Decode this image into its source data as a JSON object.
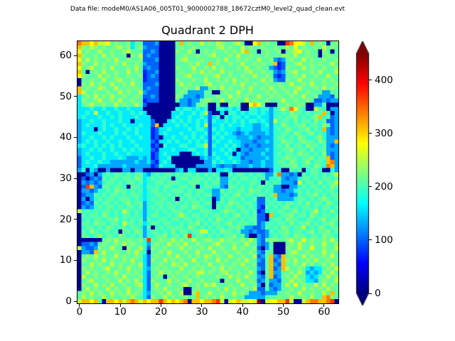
{
  "figure": {
    "data_file_label": "Data file: modeM0/AS1A06_005T01_9000002788_18672cztM0_level2_quad_clean.evt",
    "background_color": "#ffffff"
  },
  "chart_data": {
    "type": "heatmap",
    "title": "Quadrant 2 DPH",
    "xlabel": "",
    "ylabel": "",
    "x_ticks": [
      0,
      10,
      20,
      30,
      40,
      50,
      60
    ],
    "y_ticks": [
      0,
      10,
      20,
      30,
      40,
      50,
      60
    ],
    "x_range": [
      -0.5,
      63.5
    ],
    "y_range": [
      -0.5,
      63.5
    ],
    "grid_size": 64,
    "colormap": "jet",
    "vmin": 0,
    "vmax": 450,
    "colorbar": {
      "ticks": [
        0,
        100,
        200,
        300,
        400
      ],
      "extend": "both",
      "position": "right"
    },
    "value_levels": [
      8,
      40,
      70,
      100,
      130,
      160,
      190,
      210,
      230,
      255,
      280,
      310,
      340,
      370,
      400,
      440
    ],
    "grid_rows_top_to_bottom": [
      "cbbab99a78778577333400007b78779787987789700ab787700dcaa97b787078",
      "b8798787789785784333000078778777778978779787787787797a7877879787",
      "a7877977877897773343000087797078787787879b770787780789a787708707",
      "b877879787770879343300007787787789777879778777877788797787707877",
      "a797877879778778333400007897778777879778787797784347877978778778",
      "b8779787787977874333000077787977b787787797787877b237789778787797",
      "a789778797778797343300008777977879787778797787743238777978778778",
      "b7078797787797872334000078778797877978777897787743478977 78797779",
      "a877797878778778234300007789777878977877877977873237787977877977",
      "077877977897787723330000877787797787879778777978433877977877 8787",
      "087978779778797733340000797877789778778797787787787797787977 8778",
      "b787798779778787343300007787794478797877879778797787789777879787",
      "b977877877978779433300007874444770078779778777878778797787774477",
      "578797879778778733430000874443477787797878779778787787797784 4437",
      "587789778797787723330000744344788779778779787787779778778733 4344",
      "578977877978779730000000044347870070087700aba7000778778700447000",
      "555655655655655500000000656656560066565600665664679 7ca7600976044",
      "556595565565565650000005565565693005066565665654667687767677b604",
      "565556556565556555000005655655653560656656556554676778676 78b6734",
      "455655655565505555300056565656563655656565665654967768677686 7334",
      "4565556565565556553b0555656556593556565565544564668767786776 8734",
      "455505655655656555235565555656653656555455544554676876778676b434",
      "465556555656556555235655565565563565654345444454667768767867 6434",
      "455655656555655655230556556565653656555444543444677676876678 6444",
      "456565565565565555325565655656563565565544434454668776787768744b",
      "565565656565556555230655566556693655656543443444676867768776 7434",
      "455656556556565655325556555665563556565044344454667786776867 7444",
      "456555655655655555235655500056563655650543444544676776877676 8434",
      "355655655565444545235560000000454565565534444454667877677867 7b34",
      "356556554444445445325650000000044656556544344544677687678677 6bc4",
      "355564444445444444236555000004444543443444544544667778677687 6cb4",
      "460540040004404400000000450550004055650000000003660076706776 0064",
      "003404676776767754676776767767676760076776767644 7c44340767767679",
      "030343767767768756767760677677767674467677676746674344677676 7767",
      "043434677676776756677677766777676774476766776076764443967768 6779",
      "03db4377677607765767677667767067766437767676776744004467677676 87",
      "044346676877676756776767776767766447676776877676443446767677 6776",
      "034476767767677656677676767767677446767867767767b444347677867677",
      "040467677677767656767767076776766047677676673376744446776767 8767",
      "034376776767867746677676767677677067687767763367676776768677 6876",
      "043467677676776746767677677687766076776776763276767867677676 7767",
      "967676776769767646676767776766777667877677672367677678676796 7686",
      "076776876767767646776676797677676776767867673 30b6677867768767767",
      "067677677867676747667767767767767687677676773306776877667767 8677",
      "077687767769776756776776676778676776786777673467677686778676 7786",
      "067767687677677647067677776876767677677864433476768767796768 7677",
      "076876776707768746776768677677996768776744343347677867767867 7867",
      "077678677687676746677867768d67767676778674004346767768776776 8776",
      "00000078797787786d778779787797788779787787974378877897 7a78778797",
      "033437877879787764787797879778777897778779774347000787977877 9778",
      "943348779770877963877877797877879778779787783047000877977a77 8779",
      "0443b7977877879760778797778779777977877877874377000789778777 9787",
      "07879787797877875378778797787879878779778779347b43b78779787 78797",
      "08778797877879775387797878779778779787787977437b34b87977879 77877",
      "077978779787787953778779879778779778778797783 37b43b7787978678797",
      "08787789778797785478787779778787787978777877437b34b977875455 7879",
      "0797877879778787537797878778799787789778779730 7b4477879745458797",
      "09778787787977785378707877877877778779787977437b3478797754 577978",
      "078977787797879753877797877977877770877977873474437797875547 8779",
      "0877978797787789537977877897787989777877977840734479 7a7877979787",
      "079787797877977853787977870078777787978778793374347787797878 7977",
      "78797877978797875477879779008b77977877978744434447787797787797b7",
      "79787797877879775387797877877b78787977877444447778779778797 7bc87",
      "9bbab70bbab9bcb9babbdbababc0bbabbcd909ab99a9f09aabbd9009bccbbcd0"
    ]
  }
}
